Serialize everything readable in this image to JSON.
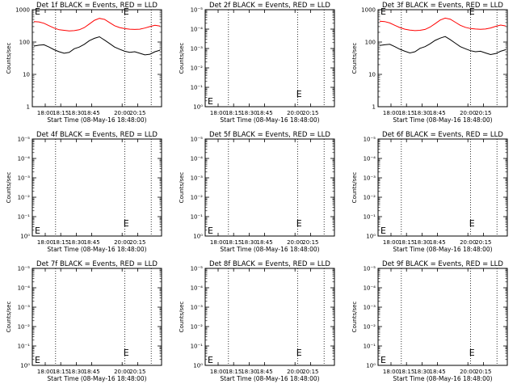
{
  "chart_data": [
    {
      "type": "line",
      "title": "Det 1f BLACK = Events, RED = LLD",
      "xlabel": "Start Time (08-May-16 18:48:00)",
      "ylabel": "Counts/sec",
      "x_ticks": [
        "18:00",
        "18:15",
        "18:30",
        "18:45",
        "20:00",
        "20:15"
      ],
      "yscale": "log",
      "ylim": [
        1,
        1000
      ],
      "y_ticks": [
        "1",
        "10",
        "100",
        "1000"
      ],
      "markers": [
        "E",
        "E"
      ],
      "series": [
        {
          "color": "#ff0000",
          "values": [
            430,
            420,
            380,
            320,
            270,
            240,
            230,
            220,
            225,
            240,
            280,
            360,
            470,
            540,
            500,
            400,
            320,
            280,
            260,
            250,
            245,
            250,
            270,
            300,
            330,
            310
          ]
        },
        {
          "color": "#000000",
          "values": [
            75,
            80,
            82,
            70,
            58,
            50,
            45,
            48,
            62,
            70,
            85,
            110,
            130,
            145,
            115,
            90,
            70,
            60,
            52,
            48,
            50,
            45,
            40,
            42,
            50,
            56
          ]
        }
      ]
    },
    {
      "type": "line",
      "title": "Det 2f BLACK = Events, RED = LLD",
      "xlabel": "Start Time (08-May-16 18:48:00)",
      "ylabel": "Counts/sec",
      "x_ticks": [
        "18:00",
        "18:15",
        "18:30",
        "18:45",
        "20:00",
        "20:15"
      ],
      "yscale": "log",
      "y_ticks": [
        "10⁰",
        "10⁻¹",
        "10⁻²",
        "10⁻³",
        "10⁻⁴",
        "10⁻⁵"
      ],
      "markers": [
        "E",
        "E"
      ],
      "series": []
    },
    {
      "type": "line",
      "title": "Det 3f BLACK = Events, RED = LLD",
      "xlabel": "Start Time (08-May-16 18:48:00)",
      "ylabel": "Counts/sec",
      "x_ticks": [
        "18:00",
        "18:15",
        "18:30",
        "18:45",
        "20:00",
        "20:15"
      ],
      "yscale": "log",
      "ylim": [
        1,
        1000
      ],
      "y_ticks": [
        "1",
        "10",
        "100",
        "1000"
      ],
      "markers": [
        "E",
        "E"
      ],
      "series": [
        {
          "color": "#ff0000",
          "values": [
            440,
            430,
            390,
            330,
            280,
            250,
            235,
            225,
            230,
            245,
            290,
            370,
            480,
            550,
            510,
            410,
            330,
            285,
            262,
            252,
            248,
            252,
            272,
            305,
            335,
            315
          ]
        },
        {
          "color": "#000000",
          "values": [
            78,
            82,
            85,
            72,
            60,
            52,
            46,
            50,
            64,
            72,
            88,
            112,
            132,
            148,
            118,
            92,
            72,
            62,
            54,
            50,
            52,
            46,
            41,
            44,
            52,
            58
          ]
        }
      ]
    },
    {
      "type": "line",
      "title": "Det 4f BLACK = Events, RED = LLD",
      "xlabel": "Start Time (08-May-16 18:48:00)",
      "ylabel": "Counts/sec",
      "x_ticks": [
        "18:00",
        "18:15",
        "18:30",
        "18:45",
        "20:00",
        "20:15"
      ],
      "yscale": "log",
      "y_ticks": [
        "10⁰",
        "10⁻¹",
        "10⁻²",
        "10⁻³",
        "10⁻⁴",
        "10⁻⁵"
      ],
      "markers": [
        "E",
        "E"
      ],
      "series": []
    },
    {
      "type": "line",
      "title": "Det 5f BLACK = Events, RED = LLD",
      "xlabel": "Start Time (08-May-16 18:48:00)",
      "ylabel": "Counts/sec",
      "x_ticks": [
        "18:00",
        "18:15",
        "18:30",
        "18:45",
        "20:00",
        "20:15"
      ],
      "yscale": "log",
      "y_ticks": [
        "10⁰",
        "10⁻¹",
        "10⁻²",
        "10⁻³",
        "10⁻⁴",
        "10⁻⁵"
      ],
      "markers": [
        "E",
        "E"
      ],
      "series": []
    },
    {
      "type": "line",
      "title": "Det 6f BLACK = Events, RED = LLD",
      "xlabel": "Start Time (08-May-16 18:48:00)",
      "ylabel": "Counts/sec",
      "x_ticks": [
        "18:00",
        "18:15",
        "18:30",
        "18:45",
        "20:00",
        "20:15"
      ],
      "yscale": "log",
      "y_ticks": [
        "10⁰",
        "10⁻¹",
        "10⁻²",
        "10⁻³",
        "10⁻⁴",
        "10⁻⁵"
      ],
      "markers": [
        "E",
        "E"
      ],
      "series": []
    },
    {
      "type": "line",
      "title": "Det 7f BLACK = Events, RED = LLD",
      "xlabel": "Start Time (08-May-16 18:48:00)",
      "ylabel": "Counts/sec",
      "x_ticks": [
        "18:00",
        "18:15",
        "18:30",
        "18:45",
        "20:00",
        "20:15"
      ],
      "yscale": "log",
      "y_ticks": [
        "10⁰",
        "10⁻¹",
        "10⁻²",
        "10⁻³",
        "10⁻⁴",
        "10⁻⁵"
      ],
      "markers": [
        "E",
        "E"
      ],
      "series": []
    },
    {
      "type": "line",
      "title": "Det 8f BLACK = Events, RED = LLD",
      "xlabel": "Start Time (08-May-16 18:48:00)",
      "ylabel": "Counts/sec",
      "x_ticks": [
        "18:00",
        "18:15",
        "18:30",
        "18:45",
        "20:00",
        "20:15"
      ],
      "yscale": "log",
      "y_ticks": [
        "10⁰",
        "10⁻¹",
        "10⁻²",
        "10⁻³",
        "10⁻⁴",
        "10⁻⁵"
      ],
      "markers": [
        "E",
        "E"
      ],
      "series": []
    },
    {
      "type": "line",
      "title": "Det 9f BLACK = Events, RED = LLD",
      "xlabel": "Start Time (08-May-16 18:48:00)",
      "ylabel": "Counts/sec",
      "x_ticks": [
        "18:00",
        "18:15",
        "18:30",
        "18:45",
        "20:00",
        "20:15"
      ],
      "yscale": "log",
      "y_ticks": [
        "10⁰",
        "10⁻¹",
        "10⁻²",
        "10⁻³",
        "10⁻⁴",
        "10⁻⁵"
      ],
      "markers": [
        "E",
        "E"
      ],
      "series": []
    }
  ]
}
